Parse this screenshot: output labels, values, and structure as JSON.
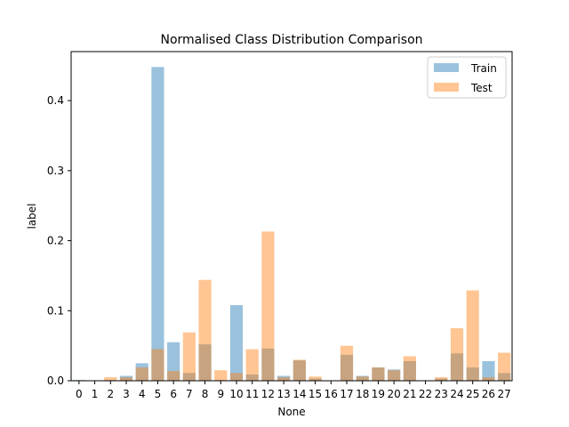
{
  "chart_data": {
    "type": "bar",
    "title": "Normalised Class Distribution Comparison",
    "xlabel": "None",
    "ylabel": "label",
    "categories": [
      "0",
      "1",
      "2",
      "3",
      "4",
      "5",
      "6",
      "7",
      "8",
      "9",
      "10",
      "11",
      "12",
      "13",
      "14",
      "15",
      "16",
      "17",
      "18",
      "19",
      "20",
      "21",
      "22",
      "23",
      "24",
      "25",
      "26",
      "27"
    ],
    "series": [
      {
        "name": "Train",
        "color": "#1f77b4",
        "opacity": 0.45,
        "values": [
          0.001,
          0.0,
          0.001,
          0.007,
          0.025,
          0.448,
          0.055,
          0.011,
          0.052,
          0.001,
          0.108,
          0.009,
          0.046,
          0.007,
          0.029,
          0.003,
          0.0,
          0.037,
          0.007,
          0.019,
          0.016,
          0.028,
          0.0,
          0.003,
          0.039,
          0.019,
          0.028,
          0.011
        ]
      },
      {
        "name": "Test",
        "color": "#ff7f0e",
        "opacity": 0.45,
        "values": [
          0.0,
          0.0,
          0.005,
          0.005,
          0.019,
          0.045,
          0.014,
          0.069,
          0.144,
          0.015,
          0.011,
          0.045,
          0.213,
          0.005,
          0.03,
          0.006,
          0.0,
          0.05,
          0.006,
          0.019,
          0.015,
          0.035,
          0.0,
          0.005,
          0.075,
          0.129,
          0.005,
          0.04
        ]
      }
    ],
    "ylim": [
      0,
      0.47
    ],
    "yticks": [
      0.0,
      0.1,
      0.2,
      0.3,
      0.4
    ],
    "ytick_labels": [
      "0.0",
      "0.1",
      "0.2",
      "0.3",
      "0.4"
    ],
    "grid": false,
    "legend_position": "top-right"
  }
}
